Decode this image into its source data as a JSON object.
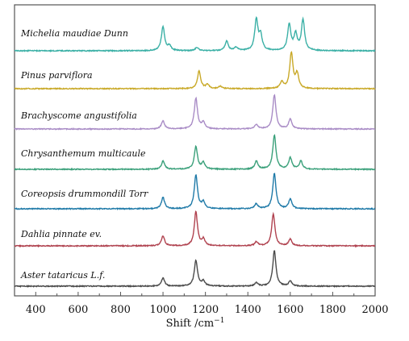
{
  "chart_data": {
    "type": "line",
    "title": "",
    "xlabel": "Shift /cm",
    "xlabel_superscript": "−1",
    "ylabel": "",
    "xlim": [
      300,
      2000
    ],
    "xticks": [
      400,
      600,
      800,
      1000,
      1200,
      1400,
      1600,
      1800,
      2000
    ],
    "tick_labels": [
      "400",
      "600",
      "800",
      "1000",
      "1200",
      "1400",
      "1600",
      "1800",
      "2000"
    ],
    "grid": false,
    "legend": "none; series labeled inline above each trace",
    "series": [
      {
        "name": "Michelia maudiae Dunn",
        "color": "#3bb0a6",
        "peaks": [
          [
            1000,
            30
          ],
          [
            1030,
            6
          ],
          [
            1160,
            4
          ],
          [
            1300,
            12
          ],
          [
            1345,
            4
          ],
          [
            1440,
            38
          ],
          [
            1460,
            18
          ],
          [
            1595,
            32
          ],
          [
            1625,
            20
          ],
          [
            1660,
            38
          ]
        ]
      },
      {
        "name": "Pinus parviflora",
        "color": "#c9a928",
        "peaks": [
          [
            1170,
            22
          ],
          [
            1210,
            5
          ],
          [
            1270,
            3
          ],
          [
            1560,
            8
          ],
          [
            1605,
            44
          ],
          [
            1632,
            18
          ]
        ]
      },
      {
        "name": "Brachyscome angustifolia",
        "color": "#a98cc6",
        "peaks": [
          [
            1000,
            10
          ],
          [
            1155,
            38
          ],
          [
            1190,
            8
          ],
          [
            1440,
            5
          ],
          [
            1525,
            42
          ],
          [
            1600,
            12
          ]
        ]
      },
      {
        "name": "Chrysanthemum multicaule",
        "color": "#3aa07a",
        "peaks": [
          [
            1000,
            10
          ],
          [
            1155,
            28
          ],
          [
            1190,
            8
          ],
          [
            1440,
            10
          ],
          [
            1525,
            42
          ],
          [
            1600,
            14
          ],
          [
            1650,
            10
          ]
        ]
      },
      {
        "name": "Coreopsis drummondill Torr",
        "color": "#1f7aa8",
        "peaks": [
          [
            1000,
            14
          ],
          [
            1155,
            42
          ],
          [
            1190,
            8
          ],
          [
            1440,
            6
          ],
          [
            1525,
            44
          ],
          [
            1600,
            12
          ]
        ]
      },
      {
        "name": "Dahlia pinnate ev.",
        "color": "#b0424f",
        "peaks": [
          [
            1000,
            12
          ],
          [
            1155,
            42
          ],
          [
            1190,
            8
          ],
          [
            1440,
            5
          ],
          [
            1520,
            40
          ],
          [
            1600,
            8
          ]
        ]
      },
      {
        "name": "Aster tataricus L.f.",
        "color": "#4a4a4a",
        "peaks": [
          [
            1000,
            10
          ],
          [
            1155,
            32
          ],
          [
            1190,
            6
          ],
          [
            1440,
            4
          ],
          [
            1525,
            44
          ],
          [
            1600,
            6
          ]
        ]
      }
    ]
  }
}
